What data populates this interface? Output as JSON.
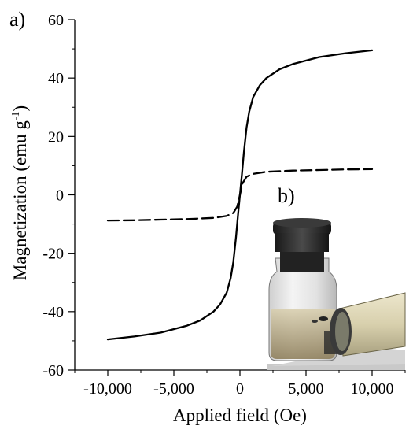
{
  "chart_data": {
    "type": "line",
    "panel_labels": {
      "a": "a)",
      "b": "b)"
    },
    "xlabel": "Applied field (Oe)",
    "ylabel": {
      "main": "Magnetization (emu g",
      "sup": "-1",
      "close": ")"
    },
    "xlim": [
      -12500,
      12500
    ],
    "ylim": [
      -60,
      60
    ],
    "xticks": [
      {
        "value": -10000,
        "label": "-10,000"
      },
      {
        "value": -5000,
        "label": "-5,000"
      },
      {
        "value": 0,
        "label": "0"
      },
      {
        "value": 5000,
        "label": "5,000"
      },
      {
        "value": 10000,
        "label": "10,000"
      }
    ],
    "yticks": [
      {
        "value": -60,
        "label": "-60"
      },
      {
        "value": -40,
        "label": "-40"
      },
      {
        "value": -20,
        "label": "-20"
      },
      {
        "value": 0,
        "label": "0"
      },
      {
        "value": 20,
        "label": "20"
      },
      {
        "value": 40,
        "label": "40"
      },
      {
        "value": 60,
        "label": "60"
      }
    ],
    "grid": false,
    "legend": "none",
    "series": [
      {
        "style": "solid",
        "color": "#000000",
        "x": [
          -10000,
          -8000,
          -6000,
          -4000,
          -3000,
          -2000,
          -1500,
          -1000,
          -700,
          -500,
          -300,
          -150,
          0,
          150,
          300,
          500,
          700,
          1000,
          1500,
          2000,
          3000,
          4000,
          6000,
          8000,
          10000
        ],
        "y": [
          -49.5,
          -48.5,
          -47.2,
          -44.8,
          -43.0,
          -40.0,
          -37.5,
          -33.5,
          -28.5,
          -23.0,
          -14.5,
          -7.0,
          0,
          7.0,
          14.5,
          23.0,
          28.5,
          33.5,
          37.5,
          40.0,
          43.0,
          44.8,
          47.2,
          48.5,
          49.5
        ]
      },
      {
        "style": "dashed",
        "color": "#000000",
        "x": [
          -10000,
          -8000,
          -6000,
          -4000,
          -2000,
          -1000,
          -500,
          -200,
          0,
          200,
          500,
          1000,
          2000,
          4000,
          6000,
          8000,
          10000
        ],
        "y": [
          -8.8,
          -8.7,
          -8.5,
          -8.3,
          -7.9,
          -7.2,
          -6.2,
          -4.0,
          0,
          4.0,
          6.2,
          7.2,
          7.9,
          8.3,
          8.5,
          8.7,
          8.8
        ]
      }
    ],
    "inset": {
      "kind": "photo",
      "description_icon": "vial-with-magnet-photo"
    }
  }
}
